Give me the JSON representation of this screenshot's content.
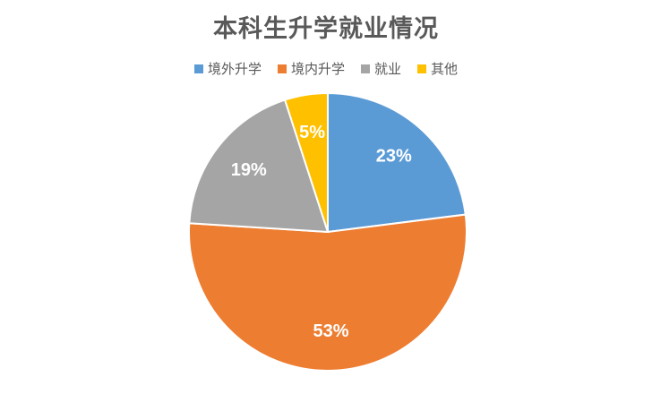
{
  "chart_data": {
    "type": "pie",
    "title": "本科生升学就业情况",
    "categories": [
      "境外升学",
      "境内升学",
      "就业",
      "其他"
    ],
    "values": [
      23,
      53,
      19,
      5
    ],
    "labels": [
      "23%",
      "53%",
      "19%",
      "5%"
    ],
    "colors": [
      "#5B9BD5",
      "#ED7D31",
      "#A5A5A5",
      "#FFC000"
    ],
    "legend": "top"
  }
}
